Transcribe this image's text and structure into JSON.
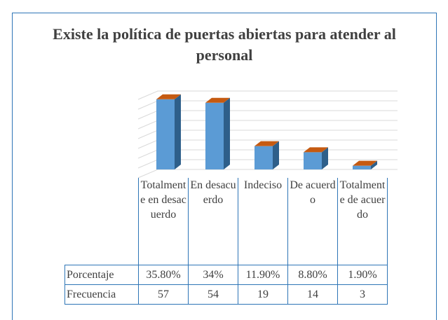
{
  "chart_data": {
    "type": "bar3d",
    "title": "Existe la política de puertas abiertas para atender al personal",
    "categories": [
      "Totalmente en desacuerdo",
      "En desacuerdo",
      "Indeciso",
      "De acuerdo",
      "Totalmente de acuerdo"
    ],
    "series": [
      {
        "name": "Porcentaje",
        "color": "#5b9bd5",
        "values": [
          35.8,
          34,
          11.9,
          8.8,
          1.9
        ],
        "value_labels": [
          "35.80%",
          "34%",
          "11.90%",
          "8.80%",
          "1.90%"
        ]
      },
      {
        "name": "Frecuencia",
        "values": [
          57,
          54,
          19,
          14,
          3
        ]
      }
    ],
    "ylim": [
      0,
      40
    ],
    "yticks": [
      0,
      5,
      10,
      15,
      20,
      25,
      30,
      35,
      40
    ],
    "grid": true
  }
}
